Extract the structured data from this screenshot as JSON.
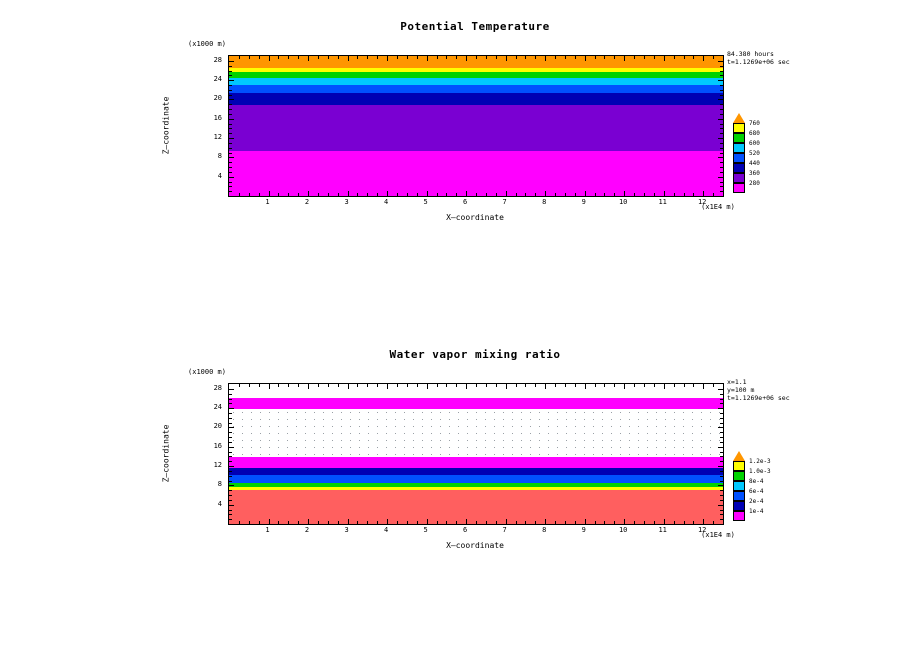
{
  "figure": {
    "background_color": "#ffffff",
    "tick_color": "#000000"
  },
  "chart_data": [
    {
      "type": "heatmap",
      "subtype": "filled-contour-bands",
      "title": "Potential Temperature",
      "xlabel": "X—coordinate",
      "ylabel": "Z—coordinate",
      "x_axis_unit": "(x1E4 m)",
      "y_axis_unit": "(x1000 m)",
      "annotations": [
        "84.380 hours",
        "t=1.1269e+06 sec"
      ],
      "x_ticks": [
        1,
        2,
        3,
        4,
        5,
        6,
        7,
        8,
        9,
        10,
        11,
        12
      ],
      "y_ticks": [
        4,
        8,
        12,
        16,
        20,
        24,
        28
      ],
      "x_range": [
        0,
        12.5
      ],
      "y_range": [
        0,
        29
      ],
      "grid": false,
      "legend_position": "right-colorbar",
      "bands": [
        {
          "z_from": 0,
          "z_to": 9.3,
          "color": "#ff00ff",
          "value_range": "< 280"
        },
        {
          "z_from": 9.3,
          "z_to": 18.8,
          "color": "#7a00d2",
          "value_range": "280–360"
        },
        {
          "z_from": 18.8,
          "z_to": 21.3,
          "color": "#0000b4",
          "value_range": "360–440"
        },
        {
          "z_from": 21.3,
          "z_to": 23.0,
          "color": "#0050ff",
          "value_range": "440–520"
        },
        {
          "z_from": 23.0,
          "z_to": 24.4,
          "color": "#00c8ff",
          "value_range": "520–600"
        },
        {
          "z_from": 24.4,
          "z_to": 25.6,
          "color": "#00d200",
          "value_range": "600–680"
        },
        {
          "z_from": 25.6,
          "z_to": 26.5,
          "color": "#ffff00",
          "value_range": "680–760"
        },
        {
          "z_from": 26.5,
          "z_to": 29,
          "color": "#ff9600",
          "value_range": "> 760"
        }
      ],
      "colorbar": {
        "labels_top_to_bottom": [
          "760",
          "680",
          "600",
          "520",
          "440",
          "360",
          "280"
        ],
        "colors_bottom_to_top": [
          "#ff00ff",
          "#7a00d2",
          "#0000b4",
          "#0050ff",
          "#00c8ff",
          "#00d200",
          "#ffff00"
        ],
        "arrow_color": "#ff9600"
      }
    },
    {
      "type": "heatmap",
      "subtype": "filled-contour-bands",
      "title": "Water vapor mixing ratio",
      "xlabel": "X—coordinate",
      "ylabel": "Z—coordinate",
      "x_axis_unit": "(x1E4 m)",
      "y_axis_unit": "(x1000 m)",
      "annotations": [
        "x=1.1",
        "y=100 m",
        "t=1.1269e+06 sec"
      ],
      "x_ticks": [
        1,
        2,
        3,
        4,
        5,
        6,
        7,
        8,
        9,
        10,
        11,
        12
      ],
      "y_ticks": [
        4,
        8,
        12,
        16,
        20,
        24,
        28
      ],
      "x_range": [
        0,
        12.5
      ],
      "y_range": [
        0,
        29
      ],
      "grid": false,
      "legend_position": "right-colorbar",
      "bands": [
        {
          "z_from": 0,
          "z_to": 7.0,
          "color": "#ff5f5f"
        },
        {
          "z_from": 7.0,
          "z_to": 7.6,
          "color": "#ffff00"
        },
        {
          "z_from": 7.6,
          "z_to": 8.4,
          "color": "#00d200"
        },
        {
          "z_from": 8.4,
          "z_to": 10.2,
          "color": "#0050ff"
        },
        {
          "z_from": 10.2,
          "z_to": 11.6,
          "color": "#0000b4"
        },
        {
          "z_from": 11.6,
          "z_to": 13.8,
          "color": "#ff00ff"
        },
        {
          "z_from": 13.8,
          "z_to": 23.8,
          "color": "#ffffff",
          "dots": true
        },
        {
          "z_from": 23.8,
          "z_to": 26.2,
          "color": "#ff00ff"
        },
        {
          "z_from": 26.2,
          "z_to": 29,
          "color": "#ffffff"
        }
      ],
      "colorbar": {
        "labels_top_to_bottom": [
          "1.2e-3",
          "1.0e-3",
          "8e-4",
          "6e-4",
          "2e-4",
          "1e-4"
        ],
        "colors_bottom_to_top": [
          "#ff00ff",
          "#0000b4",
          "#0050ff",
          "#00c8ff",
          "#00d200",
          "#ffff00"
        ],
        "arrow_color": "#ff9600"
      }
    }
  ]
}
